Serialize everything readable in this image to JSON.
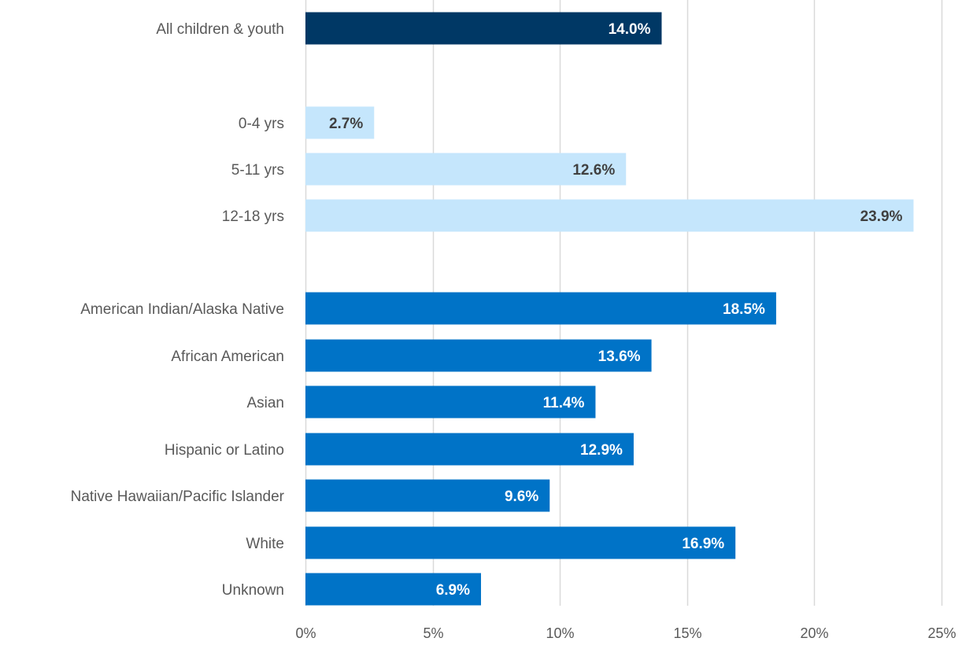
{
  "chart_data": {
    "type": "bar",
    "orientation": "horizontal",
    "title": "",
    "xlabel": "",
    "ylabel": "",
    "xlim": [
      0,
      25
    ],
    "xticks": [
      "0%",
      "5%",
      "10%",
      "15%",
      "20%",
      "25%"
    ],
    "grid": "vertical",
    "legend": "none",
    "colors": {
      "all": "#003865",
      "age": "#C5E6FC",
      "race": "#0073C7",
      "grid": "#D9D9D9",
      "label_dark": "#404040",
      "label_light": "#FFFFFF"
    },
    "bars": [
      {
        "category": "All children & youth",
        "value": 14.0,
        "label": "14.0%",
        "group": "all"
      },
      {
        "category": "0-4 yrs",
        "value": 2.7,
        "label": "2.7%",
        "group": "age"
      },
      {
        "category": "5-11 yrs",
        "value": 12.6,
        "label": "12.6%",
        "group": "age"
      },
      {
        "category": "12-18 yrs",
        "value": 23.9,
        "label": "23.9%",
        "group": "age"
      },
      {
        "category": "American Indian/Alaska Native",
        "value": 18.5,
        "label": "18.5%",
        "group": "race"
      },
      {
        "category": "African American",
        "value": 13.6,
        "label": "13.6%",
        "group": "race"
      },
      {
        "category": "Asian",
        "value": 11.4,
        "label": "11.4%",
        "group": "race"
      },
      {
        "category": "Hispanic or Latino",
        "value": 12.9,
        "label": "12.9%",
        "group": "race"
      },
      {
        "category": "Native Hawaiian/Pacific Islander",
        "value": 9.6,
        "label": "9.6%",
        "group": "race"
      },
      {
        "category": "White",
        "value": 16.9,
        "label": "16.9%",
        "group": "race"
      },
      {
        "category": "Unknown",
        "value": 6.9,
        "label": "6.9%",
        "group": "race"
      }
    ]
  }
}
